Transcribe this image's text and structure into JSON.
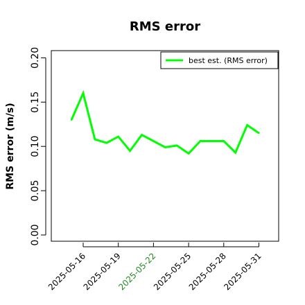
{
  "chart_data": {
    "type": "line",
    "title": "RMS error",
    "xlabel": "",
    "ylabel": "RMS error (m/s)",
    "ylim": [
      0.0,
      0.21
    ],
    "yticks": [
      "0.00",
      "0.05",
      "0.10",
      "0.15",
      "0.20"
    ],
    "ytick_values": [
      0.0,
      0.05,
      0.1,
      0.15,
      0.2
    ],
    "xticks": [
      "2025-05-16",
      "2025-05-19",
      "2025-05-22",
      "2025-05-25",
      "2025-05-28",
      "2025-05-31"
    ],
    "xtick_colors": [
      "#000000",
      "#000000",
      "#228B22",
      "#000000",
      "#000000",
      "#000000"
    ],
    "x": [
      "2025-05-15",
      "2025-05-16",
      "2025-05-17",
      "2025-05-18",
      "2025-05-19",
      "2025-05-20",
      "2025-05-21",
      "2025-05-22",
      "2025-05-23",
      "2025-05-24",
      "2025-05-25",
      "2025-05-26",
      "2025-05-27",
      "2025-05-28",
      "2025-05-29",
      "2025-05-30",
      "2025-05-31"
    ],
    "series": [
      {
        "name": "best est. (RMS error)",
        "color": "#00ff00",
        "values": [
          0.13,
          0.16,
          0.108,
          0.104,
          0.111,
          0.095,
          0.113,
          0.106,
          0.099,
          0.101,
          0.092,
          0.106,
          0.106,
          0.106,
          0.093,
          0.124,
          0.115
        ]
      }
    ],
    "legend_position": "top-right",
    "grid": false
  }
}
